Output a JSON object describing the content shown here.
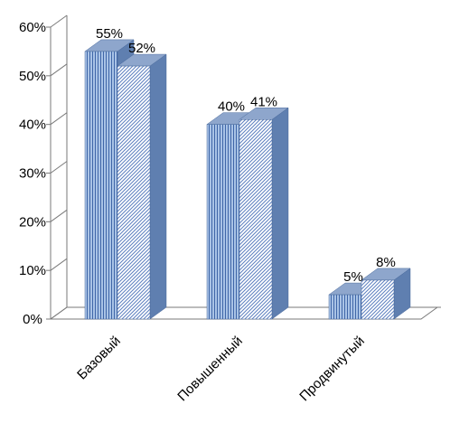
{
  "colors": {
    "series1_fill": "#a9c3e6",
    "series1_stripe": "#3f66a8",
    "series2_fill": "#ffffff",
    "series2_stripe": "#5c7fbf",
    "side": "#5f7fb0",
    "top": "#8ea6cc",
    "wall": "#7a7a7a"
  },
  "chart_data": {
    "type": "bar",
    "categories": [
      "Базовый",
      "Повышенный",
      "Продвинутый"
    ],
    "series": [
      {
        "values": [
          55,
          40,
          5
        ],
        "data_labels": [
          "55%",
          "40%",
          "5%"
        ]
      },
      {
        "values": [
          52,
          41,
          8
        ],
        "data_labels": [
          "52%",
          "41%",
          "8%"
        ]
      }
    ],
    "y_ticks": [
      "0%",
      "10%",
      "20%",
      "30%",
      "40%",
      "50%",
      "60%"
    ],
    "y_tick_values": [
      0,
      10,
      20,
      30,
      40,
      50,
      60
    ],
    "ylim": [
      0,
      60
    ],
    "grid": false,
    "three_d": true,
    "legend": "none"
  }
}
